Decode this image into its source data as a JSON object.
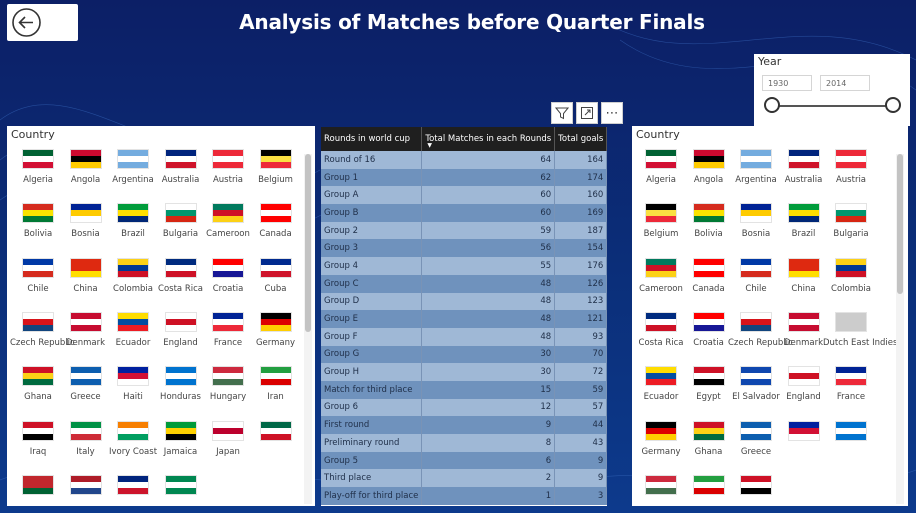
{
  "header": {
    "title": "Analysis of Matches before Quarter Finals"
  },
  "year_slicer": {
    "label": "Year",
    "start": "1930",
    "end": "2014"
  },
  "table": {
    "columns": [
      "Rounds in world cup",
      "Total Matches in each Rounds",
      "Total goals"
    ],
    "rows": [
      [
        "Round of 16",
        "64",
        "164"
      ],
      [
        "Group 1",
        "62",
        "174"
      ],
      [
        "Group A",
        "60",
        "160"
      ],
      [
        "Group B",
        "60",
        "169"
      ],
      [
        "Group 2",
        "59",
        "187"
      ],
      [
        "Group 3",
        "56",
        "154"
      ],
      [
        "Group 4",
        "55",
        "176"
      ],
      [
        "Group C",
        "48",
        "126"
      ],
      [
        "Group D",
        "48",
        "123"
      ],
      [
        "Group E",
        "48",
        "121"
      ],
      [
        "Group F",
        "48",
        "93"
      ],
      [
        "Group G",
        "30",
        "70"
      ],
      [
        "Group H",
        "30",
        "72"
      ],
      [
        "Match for third place",
        "15",
        "59"
      ],
      [
        "Group 6",
        "12",
        "57"
      ],
      [
        "First round",
        "9",
        "44"
      ],
      [
        "Preliminary round",
        "8",
        "43"
      ],
      [
        "Group 5",
        "6",
        "9"
      ],
      [
        "Third place",
        "2",
        "9"
      ],
      [
        "Play-off for third place",
        "1",
        "3"
      ]
    ]
  },
  "left_slicer": {
    "title": "Country",
    "flags": [
      {
        "name": "Algeria",
        "colors": [
          "#006233",
          "#ffffff",
          "#d21034"
        ],
        "icon": "algeria-flag-icon"
      },
      {
        "name": "Angola",
        "colors": [
          "#cc092f",
          "#000000",
          "#ffcb00"
        ],
        "icon": "angola-flag-icon"
      },
      {
        "name": "Argentina",
        "colors": [
          "#74acdf",
          "#ffffff",
          "#74acdf"
        ],
        "icon": "argentina-flag-icon"
      },
      {
        "name": "Australia",
        "colors": [
          "#00247d",
          "#ffffff",
          "#cf142b"
        ],
        "icon": "australia-flag-icon"
      },
      {
        "name": "Austria",
        "colors": [
          "#ed2939",
          "#ffffff",
          "#ed2939"
        ],
        "icon": "austria-flag-icon"
      },
      {
        "name": "Belgium",
        "colors": [
          "#000000",
          "#fae042",
          "#ed2939"
        ],
        "icon": "belgium-flag-icon"
      },
      {
        "name": "Bolivia",
        "colors": [
          "#d52b1e",
          "#f9e300",
          "#007934"
        ],
        "icon": "bolivia-flag-icon"
      },
      {
        "name": "Bosnia",
        "colors": [
          "#002395",
          "#fecb00",
          "#ffffff"
        ],
        "icon": "bosnia-flag-icon"
      },
      {
        "name": "Brazil",
        "colors": [
          "#009c3b",
          "#ffdf00",
          "#002776"
        ],
        "icon": "brazil-flag-icon"
      },
      {
        "name": "Bulgaria",
        "colors": [
          "#ffffff",
          "#00966e",
          "#d62612"
        ],
        "icon": "bulgaria-flag-icon"
      },
      {
        "name": "Cameroon",
        "colors": [
          "#007a5e",
          "#ce1126",
          "#fcd116"
        ],
        "icon": "cameroon-flag-icon"
      },
      {
        "name": "Canada",
        "colors": [
          "#ff0000",
          "#ffffff",
          "#ff0000"
        ],
        "icon": "canada-flag-icon"
      },
      {
        "name": "Chile",
        "colors": [
          "#0039a6",
          "#ffffff",
          "#d52b1e"
        ],
        "icon": "chile-flag-icon"
      },
      {
        "name": "China",
        "colors": [
          "#de2910",
          "#de2910",
          "#ffde00"
        ],
        "icon": "china-flag-icon"
      },
      {
        "name": "Colombia",
        "colors": [
          "#fcd116",
          "#003893",
          "#ce1126"
        ],
        "icon": "colombia-flag-icon"
      },
      {
        "name": "Costa Rica",
        "colors": [
          "#002b7f",
          "#ffffff",
          "#ce1126"
        ],
        "icon": "costa-rica-flag-icon"
      },
      {
        "name": "Croatia",
        "colors": [
          "#ff0000",
          "#ffffff",
          "#171796"
        ],
        "icon": "croatia-flag-icon"
      },
      {
        "name": "Cuba",
        "colors": [
          "#002a8f",
          "#ffffff",
          "#cf142b"
        ],
        "icon": "cuba-flag-icon"
      },
      {
        "name": "Czech Republic",
        "colors": [
          "#ffffff",
          "#d7141a",
          "#11457e"
        ],
        "icon": "czech-flag-icon"
      },
      {
        "name": "Denmark",
        "colors": [
          "#c60c30",
          "#ffffff",
          "#c60c30"
        ],
        "icon": "denmark-flag-icon"
      },
      {
        "name": "Ecuador",
        "colors": [
          "#ffdd00",
          "#034ea2",
          "#ed1c24"
        ],
        "icon": "ecuador-flag-icon"
      },
      {
        "name": "England",
        "colors": [
          "#ffffff",
          "#ce1124",
          "#ffffff"
        ],
        "icon": "england-flag-icon"
      },
      {
        "name": "France",
        "colors": [
          "#002395",
          "#ffffff",
          "#ed2939"
        ],
        "icon": "france-flag-icon"
      },
      {
        "name": "Germany",
        "colors": [
          "#000000",
          "#dd0000",
          "#ffce00"
        ],
        "icon": "germany-flag-icon"
      },
      {
        "name": "Ghana",
        "colors": [
          "#ce1126",
          "#fcd116",
          "#006b3f"
        ],
        "icon": "ghana-flag-icon"
      },
      {
        "name": "Greece",
        "colors": [
          "#0d5eaf",
          "#ffffff",
          "#0d5eaf"
        ],
        "icon": "greece-flag-icon"
      },
      {
        "name": "Haiti",
        "colors": [
          "#00209f",
          "#d21034",
          "#ffffff"
        ],
        "icon": "haiti-flag-icon"
      },
      {
        "name": "Honduras",
        "colors": [
          "#0073cf",
          "#ffffff",
          "#0073cf"
        ],
        "icon": "honduras-flag-icon"
      },
      {
        "name": "Hungary",
        "colors": [
          "#cd2a3e",
          "#ffffff",
          "#436f4d"
        ],
        "icon": "hungary-flag-icon"
      },
      {
        "name": "Iran",
        "colors": [
          "#239f40",
          "#ffffff",
          "#da0000"
        ],
        "icon": "iran-flag-icon"
      },
      {
        "name": "Iraq",
        "colors": [
          "#ce1126",
          "#ffffff",
          "#000000"
        ],
        "icon": "iraq-flag-icon"
      },
      {
        "name": "Italy",
        "colors": [
          "#009246",
          "#ffffff",
          "#ce2b37"
        ],
        "icon": "italy-flag-icon"
      },
      {
        "name": "Ivory Coast",
        "colors": [
          "#f77f00",
          "#ffffff",
          "#009e60"
        ],
        "icon": "ivory-coast-flag-icon"
      },
      {
        "name": "Jamaica",
        "colors": [
          "#009b3a",
          "#fed100",
          "#000000"
        ],
        "icon": "jamaica-flag-icon"
      },
      {
        "name": "Japan",
        "colors": [
          "#ffffff",
          "#bc002d",
          "#ffffff"
        ],
        "icon": "japan-flag-icon"
      },
      {
        "name": "",
        "colors": [
          "#006847",
          "#ffffff",
          "#ce1126"
        ],
        "icon": "mexico-flag-icon"
      },
      {
        "name": "",
        "colors": [
          "#c1272d",
          "#c1272d",
          "#006233"
        ],
        "icon": "morocco-flag-icon"
      },
      {
        "name": "",
        "colors": [
          "#ae1c28",
          "#ffffff",
          "#21468b"
        ],
        "icon": "netherlands-flag-icon"
      },
      {
        "name": "",
        "colors": [
          "#00247d",
          "#ffffff",
          "#cc142b"
        ],
        "icon": "new-zealand-flag-icon"
      },
      {
        "name": "",
        "colors": [
          "#008751",
          "#ffffff",
          "#008751"
        ],
        "icon": "nigeria-flag-icon"
      }
    ]
  },
  "right_slicer": {
    "title": "Country",
    "flags": [
      {
        "name": "Algeria",
        "colors": [
          "#006233",
          "#ffffff",
          "#d21034"
        ],
        "icon": "algeria-flag-icon"
      },
      {
        "name": "Angola",
        "colors": [
          "#cc092f",
          "#000000",
          "#ffcb00"
        ],
        "icon": "angola-flag-icon"
      },
      {
        "name": "Argentina",
        "colors": [
          "#74acdf",
          "#ffffff",
          "#74acdf"
        ],
        "icon": "argentina-flag-icon"
      },
      {
        "name": "Australia",
        "colors": [
          "#00247d",
          "#ffffff",
          "#cf142b"
        ],
        "icon": "australia-flag-icon"
      },
      {
        "name": "Austria",
        "colors": [
          "#ed2939",
          "#ffffff",
          "#ed2939"
        ],
        "icon": "austria-flag-icon"
      },
      {
        "name": "Belgium",
        "colors": [
          "#000000",
          "#fae042",
          "#ed2939"
        ],
        "icon": "belgium-flag-icon"
      },
      {
        "name": "Bolivia",
        "colors": [
          "#d52b1e",
          "#f9e300",
          "#007934"
        ],
        "icon": "bolivia-flag-icon"
      },
      {
        "name": "Bosnia",
        "colors": [
          "#002395",
          "#fecb00",
          "#ffffff"
        ],
        "icon": "bosnia-flag-icon"
      },
      {
        "name": "Brazil",
        "colors": [
          "#009c3b",
          "#ffdf00",
          "#002776"
        ],
        "icon": "brazil-flag-icon"
      },
      {
        "name": "Bulgaria",
        "colors": [
          "#ffffff",
          "#00966e",
          "#d62612"
        ],
        "icon": "bulgaria-flag-icon"
      },
      {
        "name": "Cameroon",
        "colors": [
          "#007a5e",
          "#ce1126",
          "#fcd116"
        ],
        "icon": "cameroon-flag-icon"
      },
      {
        "name": "Canada",
        "colors": [
          "#ff0000",
          "#ffffff",
          "#ff0000"
        ],
        "icon": "canada-flag-icon"
      },
      {
        "name": "Chile",
        "colors": [
          "#0039a6",
          "#ffffff",
          "#d52b1e"
        ],
        "icon": "chile-flag-icon"
      },
      {
        "name": "China",
        "colors": [
          "#de2910",
          "#de2910",
          "#ffde00"
        ],
        "icon": "china-flag-icon"
      },
      {
        "name": "Colombia",
        "colors": [
          "#fcd116",
          "#003893",
          "#ce1126"
        ],
        "icon": "colombia-flag-icon"
      },
      {
        "name": "Costa Rica",
        "colors": [
          "#002b7f",
          "#ffffff",
          "#ce1126"
        ],
        "icon": "costa-rica-flag-icon"
      },
      {
        "name": "Croatia",
        "colors": [
          "#ff0000",
          "#ffffff",
          "#171796"
        ],
        "icon": "croatia-flag-icon"
      },
      {
        "name": "Czech Republic",
        "colors": [
          "#ffffff",
          "#d7141a",
          "#11457e"
        ],
        "icon": "czech-flag-icon"
      },
      {
        "name": "Denmark",
        "colors": [
          "#c60c30",
          "#ffffff",
          "#c60c30"
        ],
        "icon": "denmark-flag-icon"
      },
      {
        "name": "Dutch East Indies",
        "colors": [
          "#cccccc",
          "#cccccc",
          "#cccccc"
        ],
        "icon": "unknown-flag-icon"
      },
      {
        "name": "Ecuador",
        "colors": [
          "#ffdd00",
          "#034ea2",
          "#ed1c24"
        ],
        "icon": "ecuador-flag-icon"
      },
      {
        "name": "Egypt",
        "colors": [
          "#ce1126",
          "#ffffff",
          "#000000"
        ],
        "icon": "egypt-flag-icon"
      },
      {
        "name": "El Salvador",
        "colors": [
          "#0f47af",
          "#ffffff",
          "#0f47af"
        ],
        "icon": "el-salvador-flag-icon"
      },
      {
        "name": "England",
        "colors": [
          "#ffffff",
          "#ce1124",
          "#ffffff"
        ],
        "icon": "england-flag-icon"
      },
      {
        "name": "France",
        "colors": [
          "#002395",
          "#ffffff",
          "#ed2939"
        ],
        "icon": "france-flag-icon"
      },
      {
        "name": "Germany",
        "colors": [
          "#000000",
          "#dd0000",
          "#ffce00"
        ],
        "icon": "germany-flag-icon"
      },
      {
        "name": "Ghana",
        "colors": [
          "#ce1126",
          "#fcd116",
          "#006b3f"
        ],
        "icon": "ghana-flag-icon"
      },
      {
        "name": "Greece",
        "colors": [
          "#0d5eaf",
          "#ffffff",
          "#0d5eaf"
        ],
        "icon": "greece-flag-icon"
      },
      {
        "name": "",
        "colors": [
          "#00209f",
          "#d21034",
          "#ffffff"
        ],
        "icon": "haiti-flag-icon"
      },
      {
        "name": "",
        "colors": [
          "#0073cf",
          "#ffffff",
          "#0073cf"
        ],
        "icon": "honduras-flag-icon"
      },
      {
        "name": "",
        "colors": [
          "#cd2a3e",
          "#ffffff",
          "#436f4d"
        ],
        "icon": "hungary-flag-icon"
      },
      {
        "name": "",
        "colors": [
          "#239f40",
          "#ffffff",
          "#da0000"
        ],
        "icon": "iran-flag-icon"
      },
      {
        "name": "",
        "colors": [
          "#ce1126",
          "#ffffff",
          "#000000"
        ],
        "icon": "iraq-flag-icon"
      }
    ]
  }
}
